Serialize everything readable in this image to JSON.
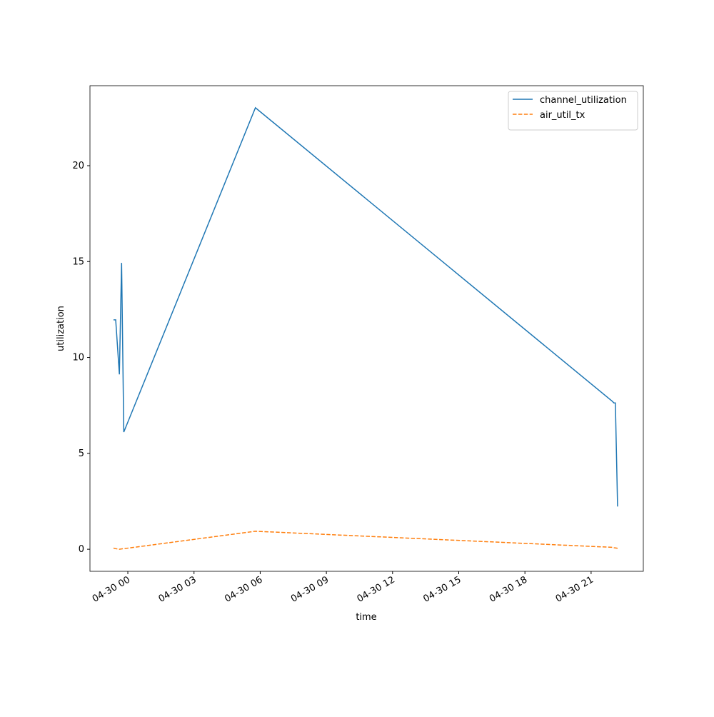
{
  "chart_data": {
    "type": "line",
    "xlabel": "time",
    "ylabel": "utilization",
    "x": [
      "04-29 23:21",
      "04-29 23:27",
      "04-29 23:37",
      "04-29 23:43",
      "04-29 23:49",
      "04-30 05:47",
      "04-30 21:58",
      "04-30 22:02",
      "04-30 22:06",
      "04-30 22:12"
    ],
    "series": [
      {
        "name": "channel_utilization",
        "color": "#1f77b4",
        "dash": "solid",
        "values": [
          11.96,
          11.96,
          9.12,
          14.93,
          6.11,
          23.02,
          7.71,
          7.63,
          7.63,
          2.23
        ]
      },
      {
        "name": "air_util_tx",
        "color": "#ff7f0e",
        "dash": "dashed",
        "values": [
          0.06,
          0.03,
          0.0,
          0.02,
          0.03,
          0.94,
          0.1,
          0.08,
          0.07,
          0.05
        ]
      }
    ],
    "xlim": [
      "04-29 22:17",
      "04-30 23:22"
    ],
    "xticks": [
      "04-30 00",
      "04-30 03",
      "04-30 06",
      "04-30 09",
      "04-30 12",
      "04-30 15",
      "04-30 18",
      "04-30 21"
    ],
    "ylim": [
      -1.15,
      24.17
    ],
    "yticks": [
      0,
      5,
      10,
      15,
      20
    ],
    "grid": false,
    "legend": "upper right"
  }
}
